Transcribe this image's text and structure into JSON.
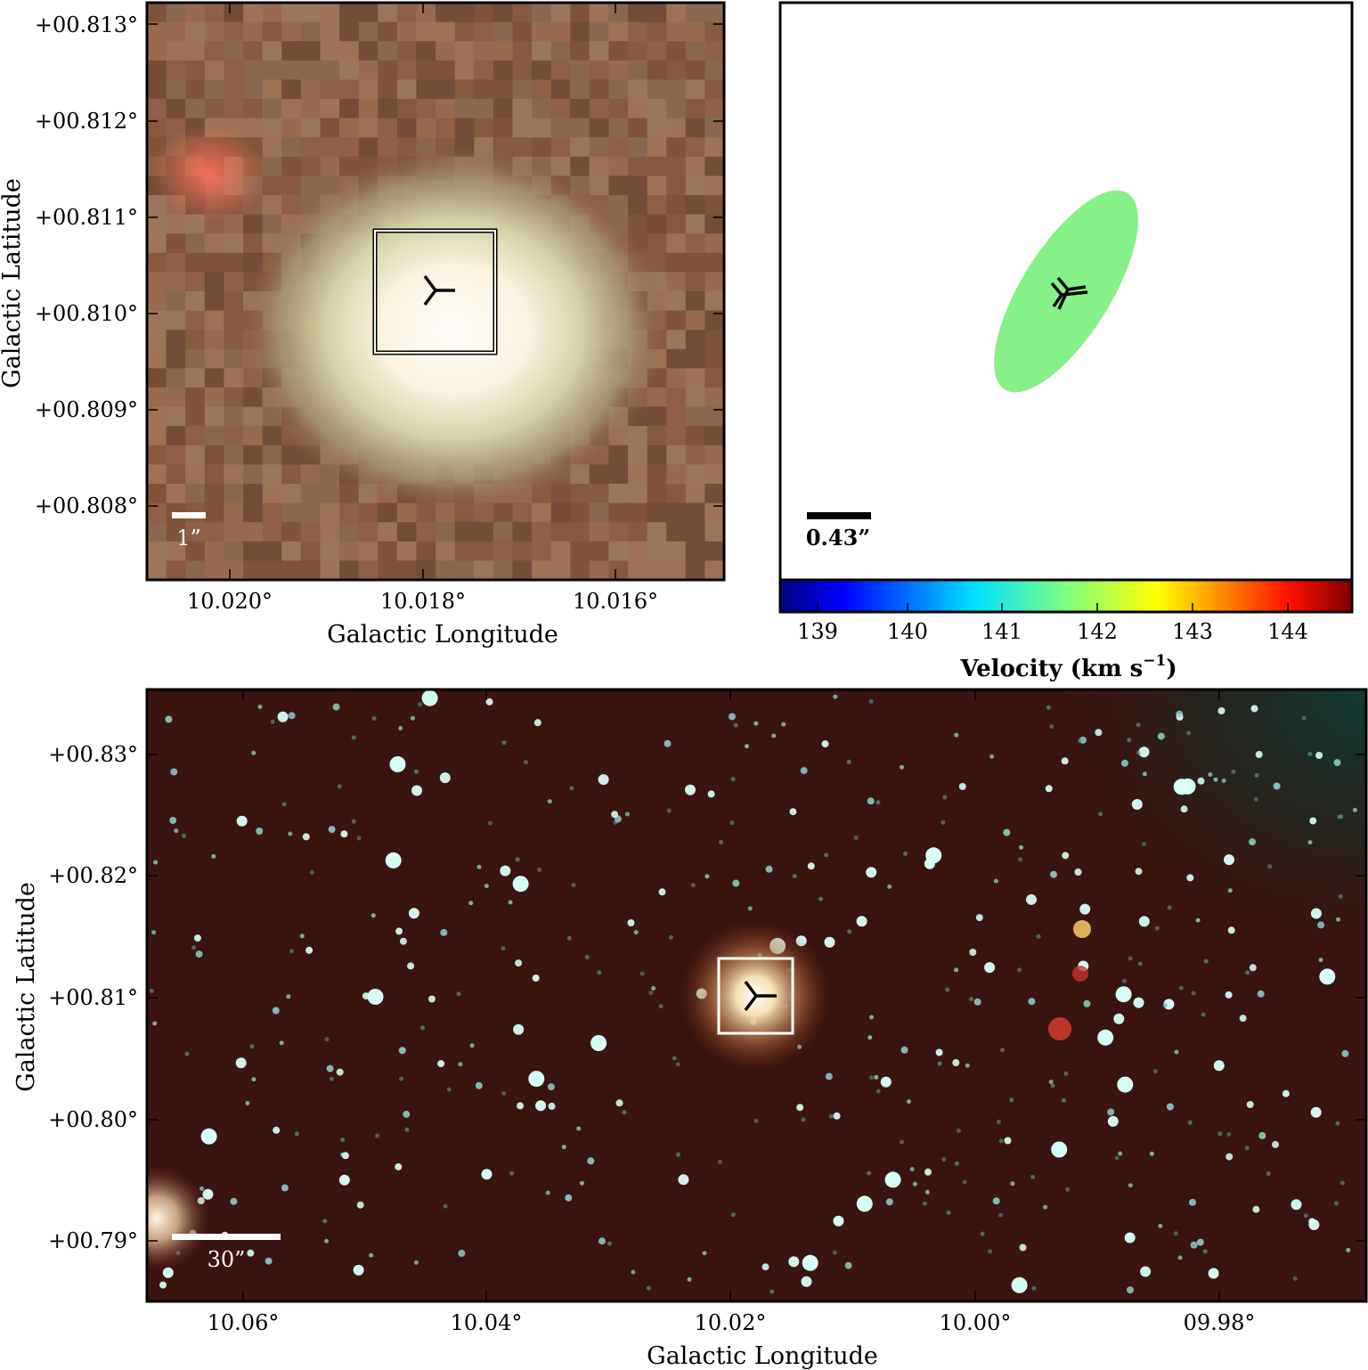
{
  "panel_zoom": {
    "xlabel": "Galactic Longitude",
    "ylabel": "Galactic Latitude",
    "xticks": [
      "10.020°",
      "10.018°",
      "10.016°"
    ],
    "yticks": [
      "+00.813°",
      "+00.812°",
      "+00.811°",
      "+00.810°",
      "+00.809°",
      "+00.808°"
    ],
    "scalebar_label": "1”",
    "colors": {
      "core": "#fffaf4",
      "ring": "#b8c890",
      "outer": "#8a5d44",
      "red_blob": "#e86850"
    }
  },
  "panel_velocity": {
    "scalebar_label": "0.43”",
    "ellipse_color": "#88f088",
    "colorbar": {
      "label_main": "Velocity (km s",
      "label_exp": "−1",
      "label_close": ")",
      "ticks": [
        "139",
        "140",
        "141",
        "142",
        "143",
        "144"
      ],
      "colors": [
        "#00007f",
        "#0000ff",
        "#007fff",
        "#00ffff",
        "#7fff7f",
        "#ffff00",
        "#ff7f00",
        "#ff0000",
        "#7f0000"
      ]
    }
  },
  "panel_field": {
    "xlabel": "Galactic Longitude",
    "ylabel": "Galactic Latitude",
    "xticks": [
      "10.06°",
      "10.04°",
      "10.02°",
      "10.00°",
      "09.98°"
    ],
    "yticks": [
      "+00.83°",
      "+00.82°",
      "+00.81°",
      "+00.80°",
      "+00.79°"
    ],
    "scalebar_label": "30”",
    "colors": {
      "background": "#3a1410",
      "star": "#d8fff8",
      "glow": "#f0c080"
    }
  }
}
